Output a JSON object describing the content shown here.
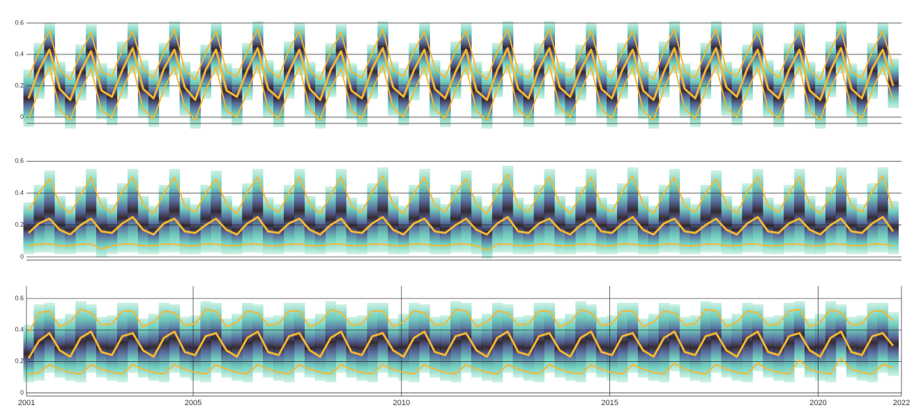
{
  "chart_data": [
    {
      "type": "line",
      "xlim": [
        2001,
        2022
      ],
      "ylim": [
        -0.04,
        0.68
      ],
      "yticks": [
        0,
        0.2,
        0.4,
        0.6
      ],
      "grid": true,
      "x": [
        2001.05,
        2001.3,
        2001.55,
        2001.8,
        2002.05,
        2002.3,
        2002.55,
        2002.8,
        2003.05,
        2003.3,
        2003.55,
        2003.8,
        2004.05,
        2004.3,
        2004.55,
        2004.8,
        2005.05,
        2005.3,
        2005.55,
        2005.8,
        2006.05,
        2006.3,
        2006.55,
        2006.8,
        2007.05,
        2007.3,
        2007.55,
        2007.8,
        2008.05,
        2008.3,
        2008.55,
        2008.8,
        2009.05,
        2009.3,
        2009.55,
        2009.8,
        2010.05,
        2010.3,
        2010.55,
        2010.8,
        2011.05,
        2011.3,
        2011.55,
        2011.8,
        2012.05,
        2012.3,
        2012.55,
        2012.8,
        2013.05,
        2013.3,
        2013.55,
        2013.8,
        2014.05,
        2014.3,
        2014.55,
        2014.8,
        2015.05,
        2015.3,
        2015.55,
        2015.8,
        2016.05,
        2016.3,
        2016.55,
        2016.8,
        2017.05,
        2017.3,
        2017.55,
        2017.8,
        2018.05,
        2018.3,
        2018.55,
        2018.8,
        2019.05,
        2019.3,
        2019.55,
        2019.8,
        2020.05,
        2020.3,
        2020.55,
        2020.8,
        2021.05,
        2021.3,
        2021.55,
        2021.8
      ],
      "series": [
        {
          "color": "#f5b731",
          "values": [
            0.25,
            0.42,
            0.55,
            0.3,
            0.24,
            0.41,
            0.54,
            0.29,
            0.26,
            0.43,
            0.55,
            0.31,
            0.25,
            0.42,
            0.56,
            0.3,
            0.24,
            0.41,
            0.55,
            0.29,
            0.26,
            0.42,
            0.56,
            0.31,
            0.25,
            0.43,
            0.55,
            0.3,
            0.24,
            0.42,
            0.54,
            0.29,
            0.25,
            0.41,
            0.56,
            0.3,
            0.26,
            0.42,
            0.55,
            0.31,
            0.25,
            0.43,
            0.55,
            0.3,
            0.24,
            0.42,
            0.56,
            0.29,
            0.25,
            0.42,
            0.56,
            0.3,
            0.26,
            0.41,
            0.55,
            0.31,
            0.25,
            0.42,
            0.55,
            0.3,
            0.24,
            0.43,
            0.56,
            0.29,
            0.25,
            0.42,
            0.56,
            0.3,
            0.26,
            0.41,
            0.55,
            0.31,
            0.25,
            0.42,
            0.55,
            0.3,
            0.24,
            0.43,
            0.56,
            0.29,
            0.25,
            0.42,
            0.55,
            0.32
          ]
        },
        {
          "color": "#f5b731",
          "values": [
            0.12,
            0.3,
            0.43,
            0.18,
            0.11,
            0.29,
            0.42,
            0.17,
            0.13,
            0.3,
            0.44,
            0.18,
            0.12,
            0.31,
            0.43,
            0.19,
            0.11,
            0.3,
            0.43,
            0.17,
            0.13,
            0.3,
            0.44,
            0.18,
            0.12,
            0.29,
            0.43,
            0.18,
            0.11,
            0.3,
            0.42,
            0.17,
            0.12,
            0.31,
            0.44,
            0.19,
            0.13,
            0.3,
            0.43,
            0.18,
            0.12,
            0.29,
            0.43,
            0.17,
            0.11,
            0.3,
            0.44,
            0.18,
            0.12,
            0.31,
            0.44,
            0.19,
            0.13,
            0.3,
            0.43,
            0.18,
            0.12,
            0.3,
            0.43,
            0.17,
            0.11,
            0.29,
            0.44,
            0.18,
            0.12,
            0.3,
            0.44,
            0.19,
            0.13,
            0.31,
            0.43,
            0.18,
            0.12,
            0.3,
            0.43,
            0.17,
            0.11,
            0.3,
            0.44,
            0.18,
            0.12,
            0.31,
            0.43,
            0.2
          ]
        },
        {
          "color": "#f5b731",
          "values": [
            -0.01,
            0.17,
            0.32,
            0.05,
            -0.02,
            0.16,
            0.31,
            0.04,
            0.0,
            0.17,
            0.33,
            0.05,
            -0.01,
            0.18,
            0.32,
            0.06,
            -0.02,
            0.17,
            0.32,
            0.04,
            0.0,
            0.16,
            0.33,
            0.05,
            -0.01,
            0.17,
            0.32,
            0.05,
            -0.02,
            0.18,
            0.31,
            0.04,
            -0.01,
            0.17,
            0.33,
            0.06,
            0.0,
            0.16,
            0.32,
            0.05,
            -0.01,
            0.17,
            0.32,
            0.04,
            -0.02,
            0.18,
            0.33,
            0.05,
            -0.01,
            0.17,
            0.33,
            0.06,
            0.0,
            0.16,
            0.32,
            0.05,
            -0.01,
            0.17,
            0.32,
            0.04,
            -0.02,
            0.18,
            0.33,
            0.05,
            -0.01,
            0.17,
            0.33,
            0.06,
            0.0,
            0.16,
            0.32,
            0.05,
            -0.01,
            0.17,
            0.32,
            0.04,
            -0.02,
            0.18,
            0.33,
            0.05,
            -0.01,
            0.17,
            0.32,
            0.11
          ]
        }
      ]
    },
    {
      "type": "line",
      "xlim": [
        2001,
        2022
      ],
      "ylim": [
        -0.02,
        0.68
      ],
      "yticks": [
        0,
        0.2,
        0.4,
        0.6
      ],
      "grid": true,
      "x": [
        2001.05,
        2001.3,
        2001.55,
        2001.8,
        2002.05,
        2002.3,
        2002.55,
        2002.8,
        2003.05,
        2003.3,
        2003.55,
        2003.8,
        2004.05,
        2004.3,
        2004.55,
        2004.8,
        2005.05,
        2005.3,
        2005.55,
        2005.8,
        2006.05,
        2006.3,
        2006.55,
        2006.8,
        2007.05,
        2007.3,
        2007.55,
        2007.8,
        2008.05,
        2008.3,
        2008.55,
        2008.8,
        2009.05,
        2009.3,
        2009.55,
        2009.8,
        2010.05,
        2010.3,
        2010.55,
        2010.8,
        2011.05,
        2011.3,
        2011.55,
        2011.8,
        2012.05,
        2012.3,
        2012.55,
        2012.8,
        2013.05,
        2013.3,
        2013.55,
        2013.8,
        2014.05,
        2014.3,
        2014.55,
        2014.8,
        2015.05,
        2015.3,
        2015.55,
        2015.8,
        2016.05,
        2016.3,
        2016.55,
        2016.8,
        2017.05,
        2017.3,
        2017.55,
        2017.8,
        2018.05,
        2018.3,
        2018.55,
        2018.8,
        2019.05,
        2019.3,
        2019.55,
        2019.8,
        2020.05,
        2020.3,
        2020.55,
        2020.8,
        2021.05,
        2021.3,
        2021.55,
        2021.8
      ],
      "series": [
        {
          "color": "#f5b731",
          "values": [
            0.29,
            0.4,
            0.49,
            0.33,
            0.27,
            0.39,
            0.5,
            0.32,
            0.28,
            0.41,
            0.5,
            0.33,
            0.27,
            0.4,
            0.5,
            0.32,
            0.28,
            0.4,
            0.49,
            0.33,
            0.27,
            0.41,
            0.5,
            0.32,
            0.28,
            0.4,
            0.5,
            0.33,
            0.27,
            0.39,
            0.5,
            0.32,
            0.28,
            0.41,
            0.51,
            0.33,
            0.27,
            0.4,
            0.5,
            0.32,
            0.28,
            0.4,
            0.49,
            0.33,
            0.27,
            0.41,
            0.52,
            0.32,
            0.28,
            0.4,
            0.5,
            0.33,
            0.27,
            0.39,
            0.5,
            0.32,
            0.28,
            0.41,
            0.51,
            0.33,
            0.27,
            0.4,
            0.5,
            0.32,
            0.28,
            0.4,
            0.49,
            0.33,
            0.27,
            0.41,
            0.5,
            0.32,
            0.28,
            0.4,
            0.5,
            0.33,
            0.27,
            0.39,
            0.51,
            0.32,
            0.28,
            0.41,
            0.51,
            0.3
          ]
        },
        {
          "color": "#f5b731",
          "values": [
            0.15,
            0.21,
            0.24,
            0.17,
            0.14,
            0.2,
            0.24,
            0.16,
            0.15,
            0.21,
            0.25,
            0.17,
            0.14,
            0.21,
            0.24,
            0.16,
            0.15,
            0.2,
            0.24,
            0.17,
            0.14,
            0.21,
            0.25,
            0.16,
            0.15,
            0.21,
            0.24,
            0.17,
            0.14,
            0.2,
            0.24,
            0.16,
            0.15,
            0.21,
            0.25,
            0.17,
            0.14,
            0.21,
            0.24,
            0.16,
            0.15,
            0.2,
            0.24,
            0.17,
            0.14,
            0.21,
            0.25,
            0.16,
            0.15,
            0.21,
            0.24,
            0.17,
            0.14,
            0.2,
            0.24,
            0.16,
            0.15,
            0.21,
            0.25,
            0.17,
            0.14,
            0.21,
            0.24,
            0.16,
            0.15,
            0.2,
            0.24,
            0.17,
            0.14,
            0.21,
            0.25,
            0.16,
            0.15,
            0.21,
            0.24,
            0.17,
            0.14,
            0.2,
            0.24,
            0.16,
            0.15,
            0.21,
            0.25,
            0.16
          ]
        },
        {
          "color": "#f5b731",
          "values": [
            0.07,
            0.08,
            0.08,
            0.07,
            0.07,
            0.08,
            0.08,
            0.05,
            0.07,
            0.08,
            0.08,
            0.07,
            0.07,
            0.08,
            0.08,
            0.07,
            0.07,
            0.08,
            0.08,
            0.07,
            0.07,
            0.08,
            0.08,
            0.07,
            0.07,
            0.08,
            0.08,
            0.07,
            0.07,
            0.08,
            0.08,
            0.07,
            0.07,
            0.08,
            0.08,
            0.07,
            0.07,
            0.08,
            0.08,
            0.07,
            0.07,
            0.08,
            0.08,
            0.07,
            0.04,
            0.08,
            0.08,
            0.07,
            0.07,
            0.08,
            0.08,
            0.07,
            0.07,
            0.08,
            0.08,
            0.07,
            0.07,
            0.08,
            0.08,
            0.07,
            0.07,
            0.08,
            0.08,
            0.07,
            0.07,
            0.08,
            0.08,
            0.07,
            0.07,
            0.08,
            0.08,
            0.07,
            0.07,
            0.08,
            0.08,
            0.07,
            0.07,
            0.08,
            0.08,
            0.07,
            0.07,
            0.08,
            0.08,
            0.07
          ]
        }
      ]
    },
    {
      "type": "line",
      "xlim": [
        2001,
        2022
      ],
      "ylim": [
        -0.02,
        0.68
      ],
      "yticks": [
        0,
        0.2,
        0.4,
        0.6
      ],
      "grid": true,
      "xticks": [
        2001,
        2005,
        2010,
        2015,
        2020,
        2022
      ],
      "x": [
        2001.05,
        2001.3,
        2001.55,
        2001.8,
        2002.05,
        2002.3,
        2002.55,
        2002.8,
        2003.05,
        2003.3,
        2003.55,
        2003.8,
        2004.05,
        2004.3,
        2004.55,
        2004.8,
        2005.05,
        2005.3,
        2005.55,
        2005.8,
        2006.05,
        2006.3,
        2006.55,
        2006.8,
        2007.05,
        2007.3,
        2007.55,
        2007.8,
        2008.05,
        2008.3,
        2008.55,
        2008.8,
        2009.05,
        2009.3,
        2009.55,
        2009.8,
        2010.05,
        2010.3,
        2010.55,
        2010.8,
        2011.05,
        2011.3,
        2011.55,
        2011.8,
        2012.05,
        2012.3,
        2012.55,
        2012.8,
        2013.05,
        2013.3,
        2013.55,
        2013.8,
        2014.05,
        2014.3,
        2014.55,
        2014.8,
        2015.05,
        2015.3,
        2015.55,
        2015.8,
        2016.05,
        2016.3,
        2016.55,
        2016.8,
        2017.05,
        2017.3,
        2017.55,
        2017.8,
        2018.05,
        2018.3,
        2018.55,
        2018.8,
        2019.05,
        2019.3,
        2019.55,
        2019.8,
        2020.05,
        2020.3,
        2020.55,
        2020.8,
        2021.05,
        2021.3,
        2021.55,
        2021.8
      ],
      "series": [
        {
          "color": "#f5b731",
          "values": [
            0.38,
            0.51,
            0.52,
            0.42,
            0.45,
            0.53,
            0.51,
            0.43,
            0.44,
            0.52,
            0.52,
            0.42,
            0.45,
            0.52,
            0.51,
            0.43,
            0.44,
            0.53,
            0.52,
            0.42,
            0.45,
            0.52,
            0.51,
            0.43,
            0.44,
            0.52,
            0.52,
            0.42,
            0.45,
            0.53,
            0.51,
            0.43,
            0.44,
            0.52,
            0.52,
            0.42,
            0.45,
            0.52,
            0.51,
            0.43,
            0.44,
            0.53,
            0.52,
            0.42,
            0.45,
            0.52,
            0.51,
            0.43,
            0.44,
            0.52,
            0.52,
            0.42,
            0.45,
            0.53,
            0.51,
            0.43,
            0.44,
            0.52,
            0.52,
            0.42,
            0.45,
            0.52,
            0.51,
            0.43,
            0.44,
            0.53,
            0.52,
            0.42,
            0.45,
            0.52,
            0.51,
            0.43,
            0.44,
            0.52,
            0.53,
            0.42,
            0.45,
            0.53,
            0.51,
            0.43,
            0.44,
            0.52,
            0.52,
            0.46
          ]
        },
        {
          "color": "#f5b731",
          "values": [
            0.22,
            0.33,
            0.38,
            0.27,
            0.23,
            0.35,
            0.39,
            0.26,
            0.24,
            0.36,
            0.38,
            0.27,
            0.23,
            0.35,
            0.39,
            0.26,
            0.24,
            0.36,
            0.38,
            0.27,
            0.23,
            0.35,
            0.39,
            0.26,
            0.24,
            0.36,
            0.38,
            0.27,
            0.23,
            0.35,
            0.39,
            0.26,
            0.24,
            0.36,
            0.38,
            0.27,
            0.23,
            0.35,
            0.39,
            0.26,
            0.24,
            0.36,
            0.38,
            0.27,
            0.23,
            0.35,
            0.39,
            0.26,
            0.24,
            0.36,
            0.38,
            0.27,
            0.23,
            0.35,
            0.39,
            0.26,
            0.24,
            0.36,
            0.38,
            0.27,
            0.23,
            0.35,
            0.39,
            0.26,
            0.24,
            0.36,
            0.38,
            0.27,
            0.23,
            0.35,
            0.39,
            0.26,
            0.24,
            0.36,
            0.38,
            0.27,
            0.23,
            0.35,
            0.39,
            0.26,
            0.24,
            0.36,
            0.38,
            0.3
          ]
        },
        {
          "color": "#f5b731",
          "values": [
            0.12,
            0.13,
            0.18,
            0.15,
            0.13,
            0.12,
            0.18,
            0.15,
            0.13,
            0.12,
            0.18,
            0.15,
            0.13,
            0.12,
            0.18,
            0.15,
            0.13,
            0.12,
            0.18,
            0.15,
            0.13,
            0.12,
            0.18,
            0.15,
            0.13,
            0.12,
            0.18,
            0.15,
            0.13,
            0.12,
            0.18,
            0.15,
            0.13,
            0.12,
            0.18,
            0.15,
            0.13,
            0.12,
            0.18,
            0.15,
            0.13,
            0.12,
            0.18,
            0.15,
            0.13,
            0.12,
            0.18,
            0.15,
            0.13,
            0.12,
            0.18,
            0.15,
            0.13,
            0.12,
            0.18,
            0.15,
            0.13,
            0.12,
            0.18,
            0.15,
            0.13,
            0.12,
            0.19,
            0.15,
            0.13,
            0.12,
            0.18,
            0.15,
            0.13,
            0.12,
            0.19,
            0.15,
            0.13,
            0.12,
            0.21,
            0.15,
            0.13,
            0.12,
            0.22,
            0.15,
            0.13,
            0.12,
            0.18,
            0.16
          ]
        }
      ]
    }
  ]
}
